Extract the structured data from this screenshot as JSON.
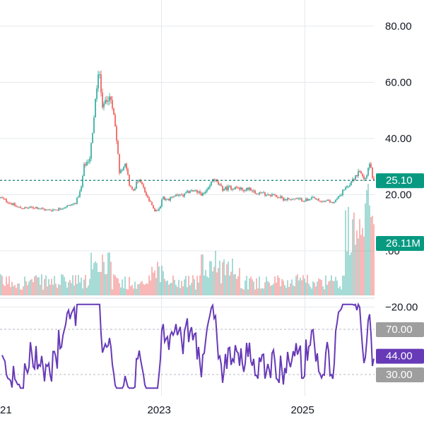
{
  "chart_data": [
    {
      "type": "candlestick",
      "xlabels": [
        "21",
        "2023",
        "2025"
      ],
      "ylim": [
        -20,
        90
      ],
      "yticks": [
        80,
        60,
        40,
        20,
        0,
        -20
      ],
      "ytick_labels": [
        "80.00",
        "60.00",
        "40.00",
        "20.00",
        ".00",
        "−20.00"
      ],
      "grid": true,
      "price_line": 25.1,
      "price_tag": "25.10",
      "volume_tag": "26.11M",
      "price_path": [
        [
          2020.75,
          19
        ],
        [
          2020.9,
          17
        ],
        [
          2021.0,
          15.5
        ],
        [
          2021.1,
          15.2
        ],
        [
          2021.25,
          15.5
        ],
        [
          2021.4,
          14.5
        ],
        [
          2021.55,
          14.8
        ],
        [
          2021.7,
          16
        ],
        [
          2021.8,
          17
        ],
        [
          2021.88,
          22
        ],
        [
          2021.92,
          30
        ],
        [
          2022.0,
          33
        ],
        [
          2022.05,
          45
        ],
        [
          2022.1,
          58
        ],
        [
          2022.13,
          66
        ],
        [
          2022.17,
          50
        ],
        [
          2022.2,
          52
        ],
        [
          2022.25,
          55
        ],
        [
          2022.3,
          53
        ],
        [
          2022.35,
          46
        ],
        [
          2022.38,
          38
        ],
        [
          2022.42,
          27
        ],
        [
          2022.46,
          30
        ],
        [
          2022.5,
          32
        ],
        [
          2022.55,
          24
        ],
        [
          2022.6,
          21
        ],
        [
          2022.67,
          25
        ],
        [
          2022.72,
          24
        ],
        [
          2022.8,
          19
        ],
        [
          2022.87,
          16
        ],
        [
          2022.92,
          14
        ],
        [
          2022.97,
          15
        ],
        [
          2023.02,
          19
        ],
        [
          2023.1,
          18
        ],
        [
          2023.2,
          20
        ],
        [
          2023.3,
          19.5
        ],
        [
          2023.4,
          21.5
        ],
        [
          2023.5,
          21
        ],
        [
          2023.58,
          20
        ],
        [
          2023.66,
          22
        ],
        [
          2023.72,
          26
        ],
        [
          2023.78,
          24
        ],
        [
          2023.85,
          22
        ],
        [
          2023.95,
          22.5
        ],
        [
          2024.05,
          22.5
        ],
        [
          2024.15,
          21.5
        ],
        [
          2024.22,
          22.5
        ],
        [
          2024.3,
          21
        ],
        [
          2024.4,
          20.5
        ],
        [
          2024.55,
          20
        ],
        [
          2024.7,
          18.5
        ],
        [
          2024.82,
          18.5
        ],
        [
          2024.95,
          18.2
        ],
        [
          2025.05,
          18
        ],
        [
          2025.12,
          18.8
        ],
        [
          2025.2,
          17.5
        ],
        [
          2025.3,
          17.8
        ],
        [
          2025.38,
          17.2
        ],
        [
          2025.45,
          18.5
        ],
        [
          2025.55,
          22
        ],
        [
          2025.62,
          24
        ],
        [
          2025.7,
          26.5
        ],
        [
          2025.76,
          28
        ],
        [
          2025.82,
          25.5
        ],
        [
          2025.86,
          27
        ],
        [
          2025.9,
          32
        ],
        [
          2025.95,
          25.1
        ]
      ]
    },
    {
      "type": "line",
      "indicator": "RSI",
      "ytick_labels": [
        "70.00",
        "44.00",
        "30.00"
      ],
      "levels": [
        70,
        30
      ],
      "current": 44.0,
      "current_label": "44.00",
      "ylim": [
        18,
        92
      ],
      "series_color": "#673ab7"
    }
  ],
  "colors": {
    "up": "#26a69a",
    "down": "#ef5350",
    "price_tag": "#089981",
    "rsi_line": "#673ab7",
    "level_tag": "#9e9e9e",
    "grid": "#e6e8ee",
    "price_line": "#0e7c72"
  }
}
